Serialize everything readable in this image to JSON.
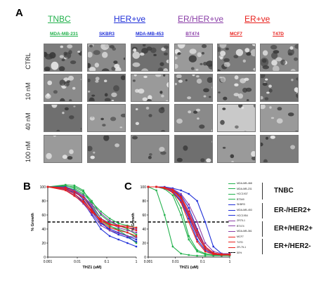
{
  "panels": {
    "a": "A",
    "b": "B",
    "c": "C"
  },
  "groups": [
    {
      "label": "TNBC",
      "color": "#22b14c"
    },
    {
      "label": "HER+ve",
      "color": "#1f2fd8"
    },
    {
      "label": "ER/HER+ve",
      "color": "#8b3fa8"
    },
    {
      "label": "ER+ve",
      "color": "#e8201c"
    }
  ],
  "cell_lines": [
    {
      "label": "MDA-MB-231",
      "color": "#22b14c"
    },
    {
      "label": "SKBR3",
      "color": "#1f2fd8"
    },
    {
      "label": "MDA-MB-453",
      "color": "#1f2fd8"
    },
    {
      "label": "BT474",
      "color": "#8b3fa8"
    },
    {
      "label": "MCF7",
      "color": "#e8201c"
    },
    {
      "label": "T47D",
      "color": "#e8201c"
    }
  ],
  "treatments": [
    "CTRL",
    "10 nM",
    "40 nM",
    "100 nM"
  ],
  "legend": {
    "items": [
      {
        "label": "MDA-MB-468",
        "color": "#22b14c"
      },
      {
        "label": "MDA-MB-231",
        "color": "#22b14c"
      },
      {
        "label": "HCC1937",
        "color": "#22b14c"
      },
      {
        "label": "BT549",
        "color": "#22b14c"
      },
      {
        "label": "SKBR3",
        "color": "#1f2fd8"
      },
      {
        "label": "MDA-MB-453",
        "color": "#1f2fd8"
      },
      {
        "label": "HCC1954",
        "color": "#1f2fd8"
      },
      {
        "label": "ZR75-1",
        "color": "#8b3fa8"
      },
      {
        "label": "BT474",
        "color": "#8b3fa8"
      },
      {
        "label": "MDA-MB-361",
        "color": "#8b3fa8"
      },
      {
        "label": "MCF7",
        "color": "#e8201c"
      },
      {
        "label": "T47D",
        "color": "#e8201c"
      },
      {
        "label": "ZR-75-1",
        "color": "#e8201c"
      },
      {
        "label": "50%",
        "color": "#000000",
        "dashed": true
      }
    ],
    "group_labels": [
      "TNBC",
      "ER-/HER2+",
      "ER+/HER2+",
      "ER+/HER2-"
    ]
  },
  "chart_data": [
    {
      "type": "line",
      "panel": "B",
      "xlabel": "THZ1 (uM)",
      "ylabel": "% Growth",
      "xscale": "log",
      "xlim": [
        0.001,
        1
      ],
      "ylim": [
        0,
        100
      ],
      "xticks": [
        "0.001",
        "0.01",
        "0.1",
        "1"
      ],
      "yticks": [
        "0",
        "20",
        "40",
        "60",
        "80",
        "100"
      ],
      "x": [
        0.001,
        0.004,
        0.008,
        0.016,
        0.031,
        0.063,
        0.125,
        0.25,
        0.5,
        1
      ],
      "reference_line": 50,
      "series": [
        {
          "color": "#22b14c",
          "values": [
            100,
            103,
            102,
            95,
            75,
            55,
            45,
            38,
            30,
            20
          ]
        },
        {
          "color": "#22b14c",
          "values": [
            100,
            101,
            100,
            93,
            80,
            60,
            50,
            45,
            40,
            32
          ]
        },
        {
          "color": "#22b14c",
          "values": [
            100,
            100,
            96,
            88,
            70,
            52,
            44,
            40,
            35,
            28
          ]
        },
        {
          "color": "#22b14c",
          "values": [
            100,
            102,
            98,
            90,
            78,
            65,
            55,
            48,
            45,
            42
          ]
        },
        {
          "color": "#1f2fd8",
          "values": [
            100,
            98,
            90,
            78,
            60,
            40,
            30,
            25,
            20,
            15
          ]
        },
        {
          "color": "#1f2fd8",
          "values": [
            100,
            97,
            92,
            85,
            70,
            50,
            38,
            32,
            28,
            22
          ]
        },
        {
          "color": "#1f2fd8",
          "values": [
            100,
            100,
            95,
            82,
            65,
            48,
            40,
            35,
            30,
            25
          ]
        },
        {
          "color": "#8b3fa8",
          "values": [
            100,
            99,
            95,
            88,
            72,
            55,
            48,
            42,
            38,
            35
          ]
        },
        {
          "color": "#8b3fa8",
          "values": [
            100,
            98,
            94,
            86,
            75,
            62,
            52,
            45,
            42,
            40
          ]
        },
        {
          "color": "#8b3fa8",
          "values": [
            100,
            96,
            88,
            76,
            62,
            45,
            38,
            34,
            30,
            28
          ]
        },
        {
          "color": "#e8201c",
          "values": [
            100,
            99,
            93,
            85,
            68,
            50,
            42,
            38,
            35,
            30
          ]
        },
        {
          "color": "#e8201c",
          "values": [
            100,
            97,
            90,
            80,
            66,
            52,
            46,
            44,
            42,
            38
          ]
        },
        {
          "color": "#e8201c",
          "values": [
            100,
            95,
            87,
            78,
            64,
            54,
            47,
            45,
            44,
            42
          ]
        }
      ]
    },
    {
      "type": "line",
      "panel": "C",
      "xlabel": "THZ1 (uM)",
      "ylabel": "% Growth",
      "xscale": "log",
      "xlim": [
        0.001,
        1
      ],
      "ylim": [
        0,
        100
      ],
      "xticks": [
        "0.001",
        "0.01",
        "0.1",
        "1"
      ],
      "yticks": [
        "0",
        "20",
        "40",
        "60",
        "80",
        "100"
      ],
      "x": [
        0.001,
        0.002,
        0.004,
        0.008,
        0.016,
        0.031,
        0.063,
        0.125,
        0.25,
        0.5,
        1
      ],
      "reference_line": 50,
      "series": [
        {
          "color": "#22b14c",
          "values": [
            100,
            95,
            60,
            15,
            5,
            3,
            2,
            2,
            2,
            2,
            2
          ]
        },
        {
          "color": "#22b14c",
          "values": [
            100,
            100,
            98,
            92,
            70,
            30,
            10,
            5,
            3,
            3,
            3
          ]
        },
        {
          "color": "#22b14c",
          "values": [
            100,
            100,
            97,
            88,
            60,
            25,
            8,
            4,
            3,
            2,
            2
          ]
        },
        {
          "color": "#22b14c",
          "values": [
            100,
            100,
            99,
            95,
            85,
            60,
            30,
            12,
            5,
            3,
            3
          ]
        },
        {
          "color": "#1f2fd8",
          "values": [
            100,
            100,
            100,
            98,
            95,
            90,
            80,
            50,
            15,
            5,
            5
          ]
        },
        {
          "color": "#1f2fd8",
          "values": [
            100,
            100,
            99,
            96,
            88,
            70,
            40,
            15,
            5,
            4,
            4
          ]
        },
        {
          "color": "#1f2fd8",
          "values": [
            100,
            100,
            98,
            93,
            80,
            55,
            25,
            10,
            4,
            3,
            3
          ]
        },
        {
          "color": "#8b3fa8",
          "values": [
            100,
            100,
            99,
            95,
            82,
            58,
            30,
            12,
            5,
            4,
            4
          ]
        },
        {
          "color": "#8b3fa8",
          "values": [
            100,
            100,
            99,
            97,
            90,
            75,
            50,
            20,
            8,
            5,
            5
          ]
        },
        {
          "color": "#8b3fa8",
          "values": [
            100,
            100,
            98,
            94,
            84,
            62,
            35,
            14,
            6,
            4,
            4
          ]
        },
        {
          "color": "#e8201c",
          "values": [
            100,
            100,
            98,
            92,
            78,
            50,
            22,
            8,
            4,
            3,
            3
          ]
        },
        {
          "color": "#e8201c",
          "values": [
            100,
            100,
            99,
            96,
            86,
            65,
            38,
            15,
            6,
            4,
            4
          ]
        },
        {
          "color": "#e8201c",
          "values": [
            100,
            100,
            99,
            95,
            84,
            60,
            32,
            12,
            5,
            4,
            4
          ]
        }
      ]
    }
  ]
}
